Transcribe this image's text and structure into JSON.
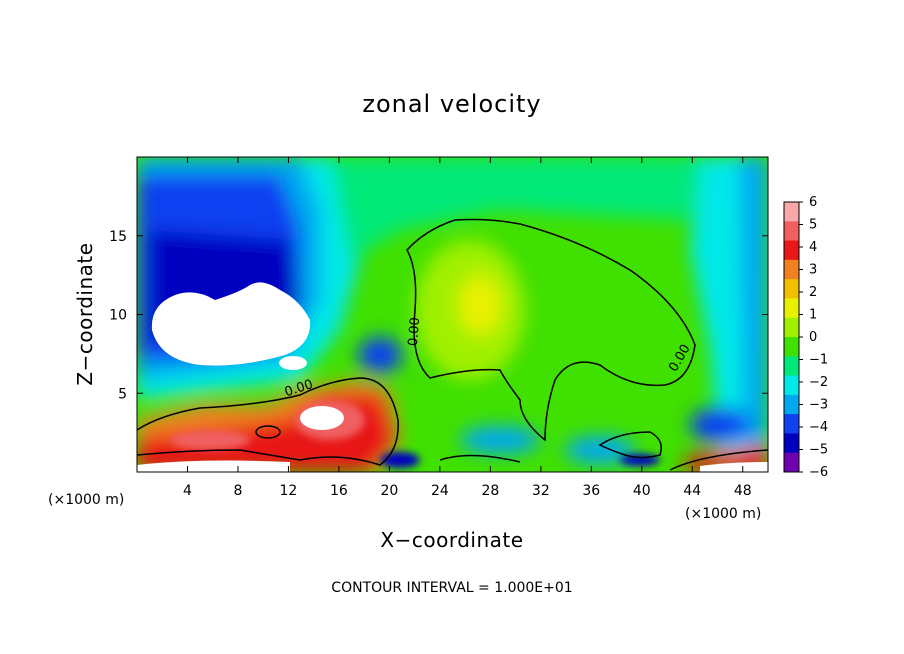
{
  "chart_data": {
    "type": "heatmap",
    "title": "zonal velocity",
    "xlabel": "X−coordinate",
    "ylabel": "Z−coordinate",
    "x_unit_left": "(×1000 m)",
    "x_unit_right": "(×1000 m)",
    "xlim": [
      0,
      50
    ],
    "ylim": [
      0,
      20
    ],
    "x_ticks": [
      4,
      8,
      12,
      16,
      20,
      24,
      28,
      32,
      36,
      40,
      44,
      48
    ],
    "y_ticks": [
      5,
      10,
      15
    ],
    "x_tick_labels": [
      "4",
      "8",
      "12",
      "16",
      "20",
      "24",
      "28",
      "32",
      "36",
      "40",
      "44",
      "48"
    ],
    "y_tick_labels": [
      "5",
      "10",
      "15"
    ],
    "footer_note": "CONTOUR INTERVAL = 1.000E+01",
    "contour_label": "0.00",
    "colorbar": {
      "levels": [
        6,
        5,
        4,
        3,
        2,
        1,
        0,
        -1,
        -2,
        -3,
        -4,
        -5,
        -6
      ],
      "labels": [
        "6",
        "5",
        "4",
        "3",
        "2",
        "1",
        "0",
        "−1",
        "−2",
        "−3",
        "−4",
        "−5",
        "−6"
      ],
      "colors": [
        "#f8a8a8",
        "#f06060",
        "#e81818",
        "#f08020",
        "#f0c000",
        "#e8f000",
        "#a0f000",
        "#40e000",
        "#00e878",
        "#00e8e8",
        "#00a8f0",
        "#1040f0",
        "#0000c0",
        "#7000b0"
      ]
    }
  }
}
